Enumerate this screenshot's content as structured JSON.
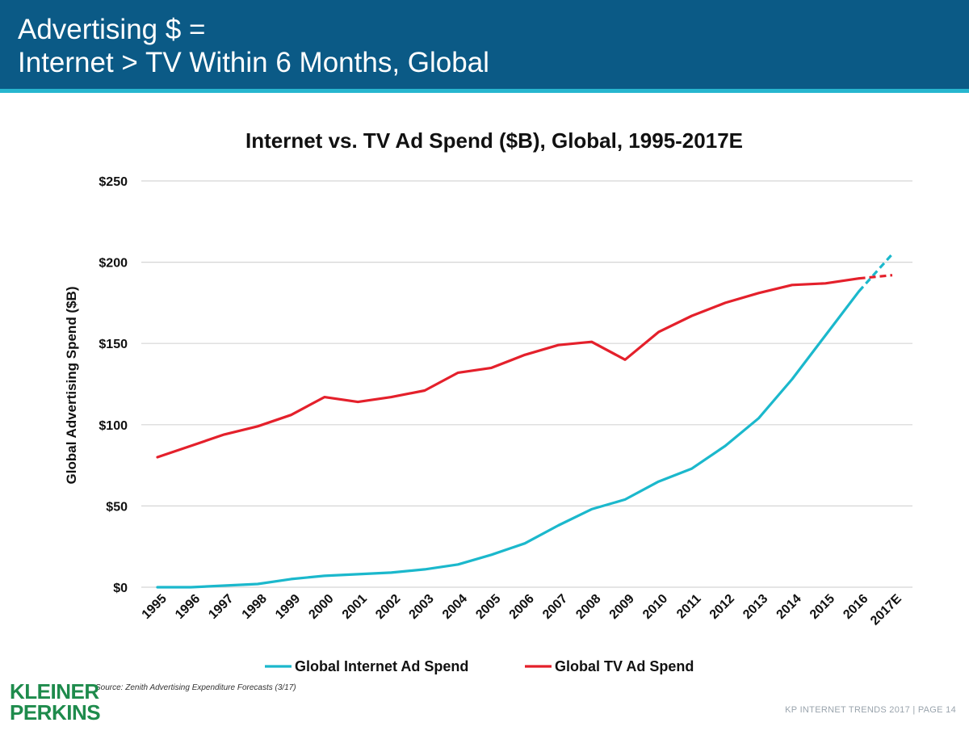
{
  "header": {
    "title_line1": "Advertising $ =",
    "title_line2": "Internet > TV Within 6 Months, Global"
  },
  "source": "Source: Zenith Advertising Expenditure Forecasts (3/17)",
  "logo": {
    "line1": "KLEINER",
    "line2": "PERKINS"
  },
  "footer": "KP INTERNET TRENDS 2017  |  PAGE 14",
  "colors": {
    "header_bg": "#0b5a86",
    "accent": "#27b6cf",
    "internet": "#1bb8cc",
    "tv": "#e4202b",
    "logo": "#1e8b4c"
  },
  "chart_data": {
    "type": "line",
    "title": "Internet vs. TV Ad Spend ($B), Global, 1995-2017E",
    "xlabel": "",
    "ylabel": "Global Advertising Spend ($B)",
    "ylim": [
      0,
      250
    ],
    "yticks": [
      0,
      50,
      100,
      150,
      200,
      250
    ],
    "ytick_labels": [
      "$0",
      "$50",
      "$100",
      "$150",
      "$200",
      "$250"
    ],
    "grid": true,
    "legend": "bottom",
    "categories": [
      "1995",
      "1996",
      "1997",
      "1998",
      "1999",
      "2000",
      "2001",
      "2002",
      "2003",
      "2004",
      "2005",
      "2006",
      "2007",
      "2008",
      "2009",
      "2010",
      "2011",
      "2012",
      "2013",
      "2014",
      "2015",
      "2016",
      "2017E"
    ],
    "series": [
      {
        "name": "Global Internet Ad Spend",
        "color": "#1bb8cc",
        "values": [
          0,
          0,
          1,
          2,
          5,
          7,
          8,
          9,
          11,
          14,
          20,
          27,
          38,
          48,
          54,
          65,
          73,
          87,
          104,
          128,
          155,
          182,
          205
        ],
        "estimate_from_index": 21
      },
      {
        "name": "Global TV Ad Spend",
        "color": "#e4202b",
        "values": [
          80,
          87,
          94,
          99,
          106,
          117,
          114,
          117,
          121,
          132,
          135,
          143,
          149,
          151,
          140,
          157,
          167,
          175,
          181,
          186,
          187,
          190,
          192
        ],
        "estimate_from_index": 21
      }
    ]
  }
}
